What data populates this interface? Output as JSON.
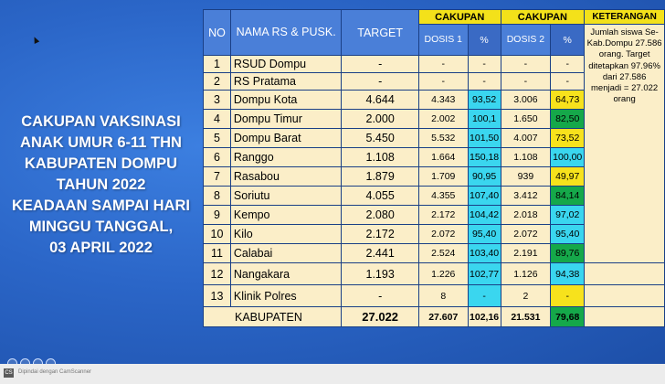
{
  "title_lines": [
    "CAKUPAN VAKSINASI",
    "ANAK UMUR 6-11 THN",
    "KABUPATEN DOMPU",
    "TAHUN 2022",
    "KEADAAN SAMPAI HARI",
    "MINGGU TANGGAL,",
    "03 APRIL 2022"
  ],
  "header": {
    "no": "NO",
    "nama": "NAMA RS & PUSK.",
    "target": "TARGET",
    "cakupan1": "CAKUPAN",
    "cakupan2": "CAKUPAN",
    "keterangan": "KETERANGAN",
    "dosis1": "DOSIS 1",
    "pct1": "%",
    "dosis2": "DOSIS 2",
    "pct2": "%"
  },
  "keterangan_text": "Jumlah siswa Se-Kab.Dompu 27.586 orang. Target ditetapkan 97.96% dari 27.586 menjadi = 27.022 orang",
  "rows": [
    {
      "no": "1",
      "nama": "RSUD Dompu",
      "target": "-",
      "dosis1": "-",
      "pct1": "-",
      "dosis2": "-",
      "pct2": "-"
    },
    {
      "no": "2",
      "nama": "RS Pratama",
      "target": "-",
      "dosis1": "-",
      "pct1": "-",
      "dosis2": "-",
      "pct2": "-"
    },
    {
      "no": "3",
      "nama": "Dompu Kota",
      "target": "4.644",
      "dosis1": "4.343",
      "pct1": "93,52",
      "dosis2": "3.006",
      "pct2": "64,73"
    },
    {
      "no": "4",
      "nama": "Dompu Timur",
      "target": "2.000",
      "dosis1": "2.002",
      "pct1": "100,1",
      "dosis2": "1.650",
      "pct2": "82,50"
    },
    {
      "no": "5",
      "nama": "Dompu Barat",
      "target": "5.450",
      "dosis1": "5.532",
      "pct1": "101,50",
      "dosis2": "4.007",
      "pct2": "73,52"
    },
    {
      "no": "6",
      "nama": "Ranggo",
      "target": "1.108",
      "dosis1": "1.664",
      "pct1": "150,18",
      "dosis2": "1.108",
      "pct2": "100,00"
    },
    {
      "no": "7",
      "nama": "Rasabou",
      "target": "1.879",
      "dosis1": "1.709",
      "pct1": "90,95",
      "dosis2": "939",
      "pct2": "49,97"
    },
    {
      "no": "8",
      "nama": "Soriutu",
      "target": "4.055",
      "dosis1": "4.355",
      "pct1": "107,40",
      "dosis2": "3.412",
      "pct2": "84,14"
    },
    {
      "no": "9",
      "nama": "Kempo",
      "target": "2.080",
      "dosis1": "2.172",
      "pct1": "104,42",
      "dosis2": "2.018",
      "pct2": "97,02"
    },
    {
      "no": "10",
      "nama": "Kilo",
      "target": "2.172",
      "dosis1": "2.072",
      "pct1": "95,40",
      "dosis2": "2.072",
      "pct2": "95,40"
    },
    {
      "no": "11",
      "nama": "Calabai",
      "target": "2.441",
      "dosis1": "2.524",
      "pct1": "103,40",
      "dosis2": "2.191",
      "pct2": "89,76"
    },
    {
      "no": "12",
      "nama": "Nangakara",
      "target": "1.193",
      "dosis1": "1.226",
      "pct1": "102,77",
      "dosis2": "1.126",
      "pct2": "94,38"
    },
    {
      "no": "13",
      "nama": "Klinik Polres",
      "target": "-",
      "dosis1": "8",
      "pct1": "-",
      "dosis2": "2",
      "pct2": "-"
    }
  ],
  "total": {
    "label": "KABUPATEN",
    "target": "27.022",
    "dosis1": "27.607",
    "pct1": "102,16",
    "dosis2": "21.531",
    "pct2": "79,68"
  },
  "footer": {
    "cs_badge": "CS",
    "scanner_text": "Dipindai dengan CamScanner"
  },
  "colors": {
    "cyan": "#3ad6ef",
    "yellow": "#f7e21c",
    "green": "#15a84a",
    "header_blue": "#4a7fd8",
    "cream": "#fbeec8"
  }
}
